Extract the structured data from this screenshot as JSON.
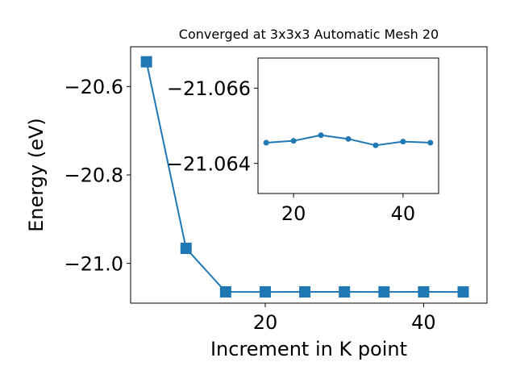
{
  "chart_data": [
    {
      "type": "line",
      "title": "Converged at 3x3x3 Automatic Mesh 20",
      "xlabel": "Increment in K point",
      "ylabel": "Energy (eV)",
      "xlim": [
        3,
        48
      ],
      "ylim": [
        -21.09,
        -20.51
      ],
      "x_ticks": [
        20,
        40
      ],
      "x_tick_labels": [
        "20",
        "40"
      ],
      "y_ticks": [
        -20.6,
        -20.8,
        -21.0
      ],
      "y_tick_labels": [
        "−20.6",
        "−20.8",
        "−21.0"
      ],
      "grid": false,
      "legend": "none",
      "marker": "square",
      "color": "#1f77b4",
      "series": [
        {
          "x": [
            5,
            10,
            15,
            20,
            25,
            30,
            35,
            40,
            45
          ],
          "y": [
            -20.544,
            -20.966,
            -21.0645,
            -21.0646,
            -21.0645,
            -21.0645,
            -21.0646,
            -21.0645,
            -21.0646
          ]
        }
      ]
    },
    {
      "type": "line",
      "title": "",
      "xlabel": "",
      "ylabel": "",
      "xlim": [
        13.5,
        46.5
      ],
      "ylim": [
        -21.0632,
        -21.0668
      ],
      "x_ticks": [
        20,
        40
      ],
      "x_tick_labels": [
        "20",
        "40"
      ],
      "y_ticks": [
        -21.066,
        -21.064
      ],
      "y_tick_labels": [
        "−21.066",
        "−21.064"
      ],
      "grid": false,
      "legend": "none",
      "marker": "circle",
      "color": "#1f77b4",
      "series": [
        {
          "x": [
            15,
            20,
            25,
            30,
            35,
            40,
            45
          ],
          "y": [
            -21.06455,
            -21.0646,
            -21.06475,
            -21.06465,
            -21.06448,
            -21.06458,
            -21.06455
          ]
        }
      ]
    }
  ]
}
